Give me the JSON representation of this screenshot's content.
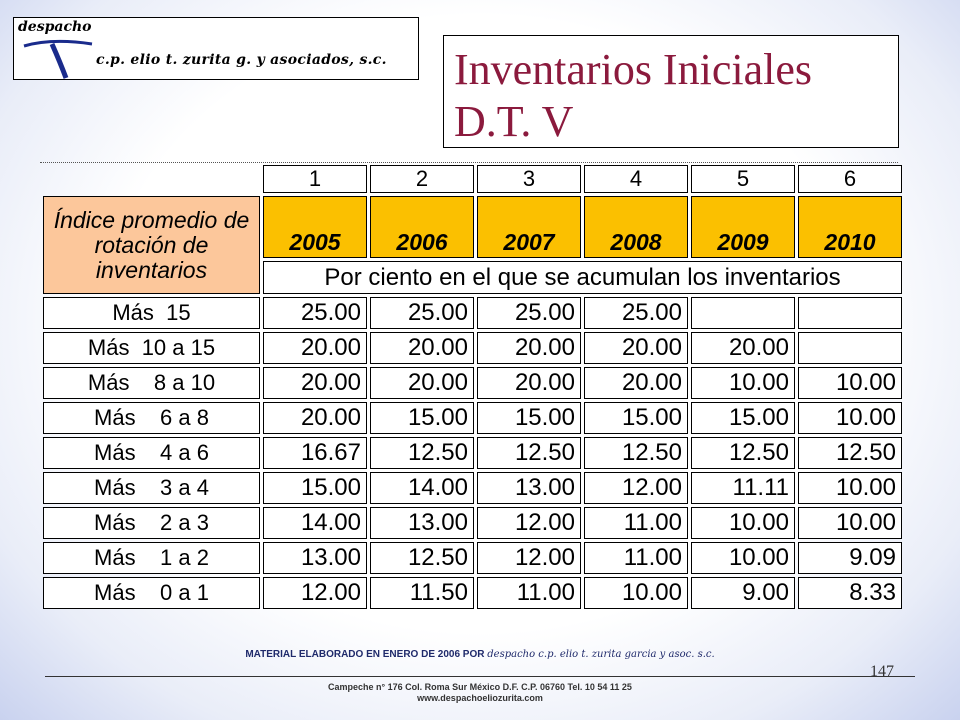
{
  "logo": {
    "top_text": "despacho",
    "firm_name": "c.p. elio t. zurita g. y asociados, s.c."
  },
  "title": {
    "line1": "Inventarios Iniciales",
    "line2": "D.T. V"
  },
  "table": {
    "column_numbers": [
      "1",
      "2",
      "3",
      "4",
      "5",
      "6"
    ],
    "row_header_label": "Índice promedio de rotación de inventarios",
    "years": [
      "2005",
      "2006",
      "2007",
      "2008",
      "2009",
      "2010"
    ],
    "subtitle": "Por ciento en el que se acumulan los inventarios",
    "rows": [
      {
        "label": "Más  15",
        "values": [
          "25.00",
          "25.00",
          "25.00",
          "25.00",
          "",
          ""
        ]
      },
      {
        "label": "Más  10 a 15",
        "values": [
          "20.00",
          "20.00",
          "20.00",
          "20.00",
          "20.00",
          ""
        ]
      },
      {
        "label": "Más    8 a 10",
        "values": [
          "20.00",
          "20.00",
          "20.00",
          "20.00",
          "10.00",
          "10.00"
        ]
      },
      {
        "label": "Más    6 a 8",
        "values": [
          "20.00",
          "15.00",
          "15.00",
          "15.00",
          "15.00",
          "10.00"
        ]
      },
      {
        "label": "Más    4 a 6",
        "values": [
          "16.67",
          "12.50",
          "12.50",
          "12.50",
          "12.50",
          "12.50"
        ]
      },
      {
        "label": "Más    3 a 4",
        "values": [
          "15.00",
          "14.00",
          "13.00",
          "12.00",
          "11.11",
          "10.00"
        ]
      },
      {
        "label": "Más    2 a 3",
        "values": [
          "14.00",
          "13.00",
          "12.00",
          "11.00",
          "10.00",
          "10.00"
        ]
      },
      {
        "label": "Más    1 a 2",
        "values": [
          "13.00",
          "12.50",
          "12.00",
          "11.00",
          "10.00",
          "9.09"
        ]
      },
      {
        "label": "Más    0 a 1",
        "values": [
          "12.00",
          "11.50",
          "11.00",
          "10.00",
          "9.00",
          "8.33"
        ]
      }
    ]
  },
  "footer": {
    "material_text": "MATERIAL ELABORADO EN ENERO DE 2006 POR",
    "material_firm": "despacho c.p. elio t. zurita garcia y asoc. s.c.",
    "page_number": "147",
    "address": "Campeche n° 176 Col. Roma Sur México D.F. C.P. 06760 Tel. 10 54 11 25",
    "website": "www.despachoeliozurita.com"
  },
  "colors": {
    "title": "#8b1a3d",
    "label_bg": "#fcc79b",
    "year_bg": "#fbc000",
    "footer_text": "#1f2a6b"
  }
}
